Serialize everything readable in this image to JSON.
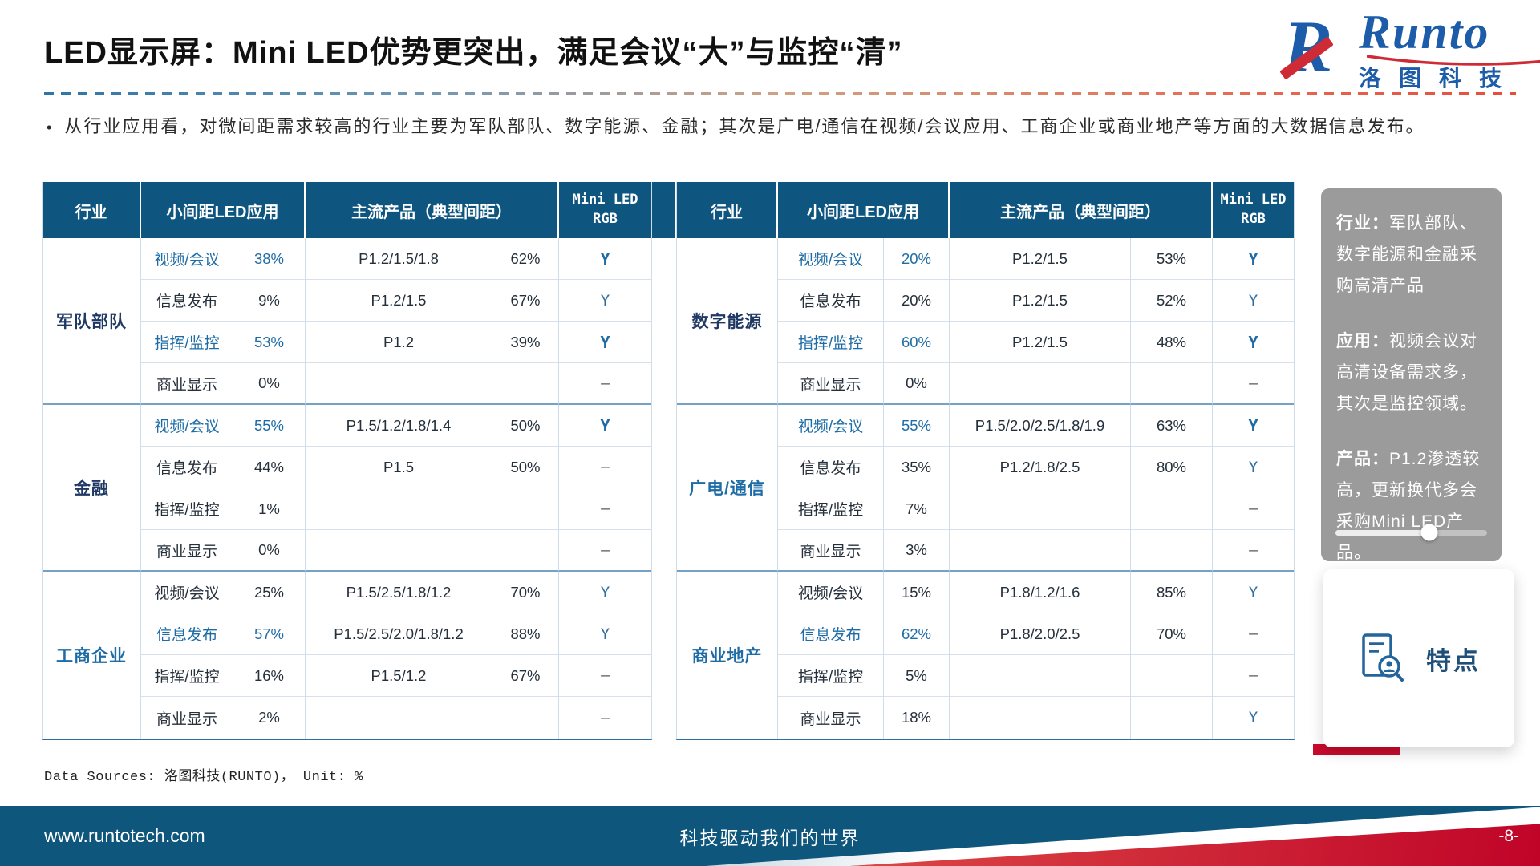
{
  "title": "LED显示屏：Mini LED优势更突出，满足会议“大”与监控“清”",
  "bullet_marker": "•",
  "bullet": "从行业应用看，对微间距需求较高的行业主要为军队部队、数字能源、金融；其次是广电/通信在视频/会议应用、工商企业或商业地产等方面的大数据信息发布。",
  "logo": {
    "mark_letter": "R",
    "brand": "Runto",
    "cn": "洛图科技"
  },
  "table_header": {
    "industry": "行业",
    "app": "小间距LED应用",
    "products": "主流产品（典型间距）",
    "mini": "Mini LED\nRGB"
  },
  "tables": {
    "left": {
      "groups": [
        {
          "industry": "军队部队",
          "industry_blue": false,
          "rows": [
            {
              "app": "视频/会议",
              "pct": "38%",
              "hl": true,
              "products": "P1.2/1.5/1.8",
              "prod_pct": "62%",
              "mini": "Y",
              "mini_style": "bold"
            },
            {
              "app": "信息发布",
              "pct": "9%",
              "hl": false,
              "products": "P1.2/1.5",
              "prod_pct": "67%",
              "mini": "Y",
              "mini_style": "normal"
            },
            {
              "app": "指挥/监控",
              "pct": "53%",
              "hl": true,
              "products": "P1.2",
              "prod_pct": "39%",
              "mini": "Y",
              "mini_style": "bold"
            },
            {
              "app": "商业显示",
              "pct": "0%",
              "hl": false,
              "products": "",
              "prod_pct": "",
              "mini": "–",
              "mini_style": "dash"
            }
          ]
        },
        {
          "industry": "金融",
          "industry_blue": false,
          "rows": [
            {
              "app": "视频/会议",
              "pct": "55%",
              "hl": true,
              "products": "P1.5/1.2/1.8/1.4",
              "prod_pct": "50%",
              "mini": "Y",
              "mini_style": "bold"
            },
            {
              "app": "信息发布",
              "pct": "44%",
              "hl": false,
              "products": "P1.5",
              "prod_pct": "50%",
              "mini": "–",
              "mini_style": "dash"
            },
            {
              "app": "指挥/监控",
              "pct": "1%",
              "hl": false,
              "products": "",
              "prod_pct": "",
              "mini": "–",
              "mini_style": "dash"
            },
            {
              "app": "商业显示",
              "pct": "0%",
              "hl": false,
              "products": "",
              "prod_pct": "",
              "mini": "–",
              "mini_style": "dash"
            }
          ]
        },
        {
          "industry": "工商企业",
          "industry_blue": true,
          "rows": [
            {
              "app": "视频/会议",
              "pct": "25%",
              "hl": false,
              "products": "P1.5/2.5/1.8/1.2",
              "prod_pct": "70%",
              "mini": "Y",
              "mini_style": "normal"
            },
            {
              "app": "信息发布",
              "pct": "57%",
              "hl": true,
              "products": "P1.5/2.5/2.0/1.8/1.2",
              "prod_pct": "88%",
              "mini": "Y",
              "mini_style": "normal"
            },
            {
              "app": "指挥/监控",
              "pct": "16%",
              "hl": false,
              "products": "P1.5/1.2",
              "prod_pct": "67%",
              "mini": "–",
              "mini_style": "dash"
            },
            {
              "app": "商业显示",
              "pct": "2%",
              "hl": false,
              "products": "",
              "prod_pct": "",
              "mini": "–",
              "mini_style": "dash"
            }
          ]
        }
      ]
    },
    "right": {
      "groups": [
        {
          "industry": "数字能源",
          "industry_blue": false,
          "rows": [
            {
              "app": "视频/会议",
              "pct": "20%",
              "hl": true,
              "products": "P1.2/1.5",
              "prod_pct": "53%",
              "mini": "Y",
              "mini_style": "bold"
            },
            {
              "app": "信息发布",
              "pct": "20%",
              "hl": false,
              "products": "P1.2/1.5",
              "prod_pct": "52%",
              "mini": "Y",
              "mini_style": "normal"
            },
            {
              "app": "指挥/监控",
              "pct": "60%",
              "hl": true,
              "products": "P1.2/1.5",
              "prod_pct": "48%",
              "mini": "Y",
              "mini_style": "bold"
            },
            {
              "app": "商业显示",
              "pct": "0%",
              "hl": false,
              "products": "",
              "prod_pct": "",
              "mini": "–",
              "mini_style": "dash"
            }
          ]
        },
        {
          "industry": "广电/通信",
          "industry_blue": true,
          "rows": [
            {
              "app": "视频/会议",
              "pct": "55%",
              "hl": true,
              "products": "P1.5/2.0/2.5/1.8/1.9",
              "prod_pct": "63%",
              "mini": "Y",
              "mini_style": "bold"
            },
            {
              "app": "信息发布",
              "pct": "35%",
              "hl": false,
              "products": "P1.2/1.8/2.5",
              "prod_pct": "80%",
              "mini": "Y",
              "mini_style": "normal"
            },
            {
              "app": "指挥/监控",
              "pct": "7%",
              "hl": false,
              "products": "",
              "prod_pct": "",
              "mini": "–",
              "mini_style": "dash"
            },
            {
              "app": "商业显示",
              "pct": "3%",
              "hl": false,
              "products": "",
              "prod_pct": "",
              "mini": "–",
              "mini_style": "dash"
            }
          ]
        },
        {
          "industry": "商业地产",
          "industry_blue": true,
          "rows": [
            {
              "app": "视频/会议",
              "pct": "15%",
              "hl": false,
              "products": "P1.8/1.2/1.6",
              "prod_pct": "85%",
              "mini": "Y",
              "mini_style": "normal"
            },
            {
              "app": "信息发布",
              "pct": "62%",
              "hl": true,
              "products": "P1.8/2.0/2.5",
              "prod_pct": "70%",
              "mini": "–",
              "mini_style": "dash"
            },
            {
              "app": "指挥/监控",
              "pct": "5%",
              "hl": false,
              "products": "",
              "prod_pct": "",
              "mini": "–",
              "mini_style": "dash"
            },
            {
              "app": "商业显示",
              "pct": "18%",
              "hl": false,
              "products": "",
              "prod_pct": "",
              "mini": "Y",
              "mini_style": "normal"
            }
          ]
        }
      ]
    }
  },
  "side_panel": {
    "paragraphs": [
      {
        "label": "行业：",
        "text": "军队部队、数字能源和金融采购高清产品"
      },
      {
        "label": "应用：",
        "text": "视频会议对高清设备需求多，其次是监控领域。"
      },
      {
        "label": "产品：",
        "text": "P1.2渗透较高，更新换代多会采购Mini LED产品。"
      }
    ],
    "slider_pos": 0.62
  },
  "feature_card": {
    "label": "特点",
    "icon": "person-document-icon"
  },
  "data_source": "Data Sources: 洛图科技(RUNTO)， Unit: %",
  "footer": {
    "site": "www.runtotech.com",
    "slogan": "科技驱动我们的世界",
    "page": "-8-"
  },
  "colors": {
    "header_blue": "#0E5680",
    "accent_blue": "#1E6CA6",
    "industry_navy": "#1F3864",
    "footer_blue": "#0F567D",
    "logo_blue": "#1C5CA8",
    "logo_red": "#CE2B37",
    "panel_gray": "#9B9B9B",
    "red_accent": "#C90A2D"
  }
}
